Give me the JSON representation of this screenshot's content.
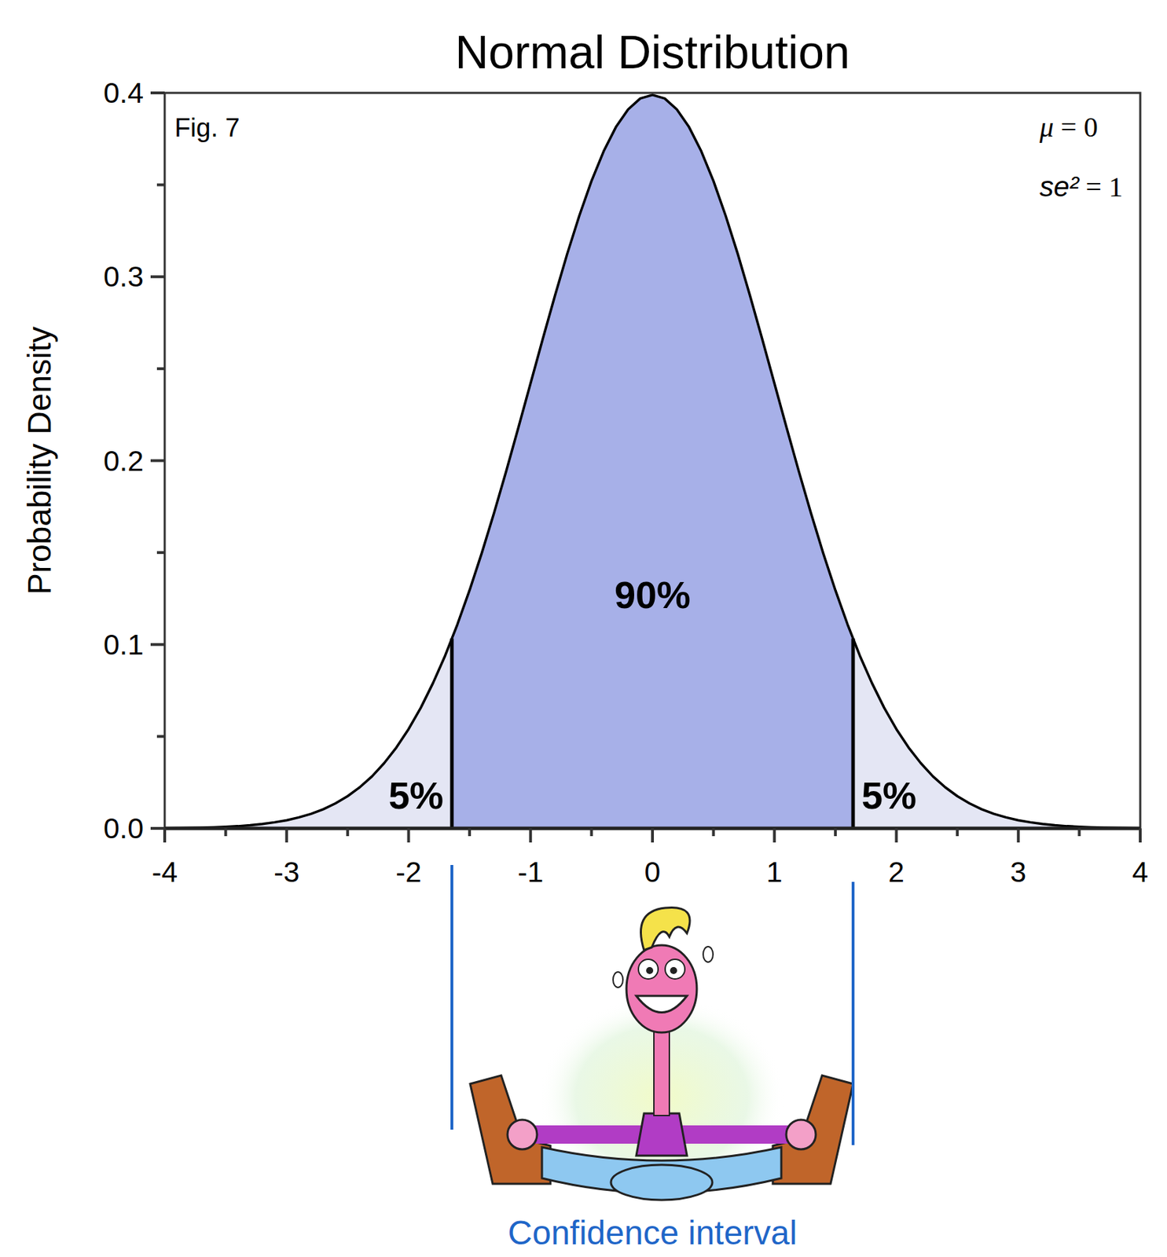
{
  "chart_data": {
    "type": "area",
    "title": "Normal Distribution",
    "y_label": "Probability Density",
    "figure_label": "Fig. 7",
    "parameters": [
      "μ = 0",
      "se² = 1"
    ],
    "color": "#000000",
    "x": [
      -4,
      -3.9,
      -3.8,
      -3.7,
      -3.6,
      -3.5,
      -3.4,
      -3.3,
      -3.2,
      -3.1,
      -3,
      -2.9,
      -2.8,
      -2.7,
      -2.6,
      -2.5,
      -2.4,
      -2.3,
      -2.2,
      -2.1,
      -2,
      -1.9,
      -1.8,
      -1.7,
      -1.6,
      -1.5,
      -1.4,
      -1.3,
      -1.2,
      -1.1,
      -1,
      -0.9,
      -0.8,
      -0.7,
      -0.6,
      -0.5,
      -0.4,
      -0.3,
      -0.2,
      -0.1,
      0,
      0.1,
      0.2,
      0.3,
      0.4,
      0.5,
      0.6,
      0.7,
      0.8,
      0.9,
      1,
      1.1,
      1.2,
      1.3,
      1.4,
      1.5,
      1.6,
      1.7,
      1.8,
      1.9,
      2,
      2.1,
      2.2,
      2.3,
      2.4,
      2.5,
      2.6,
      2.7,
      2.8,
      2.9,
      3,
      3.1,
      3.2,
      3.3,
      3.4,
      3.5,
      3.6,
      3.7,
      3.8,
      3.9,
      4
    ],
    "values": [
      0.0001,
      0.0002,
      0.0003,
      0.0004,
      0.0006,
      0.0009,
      0.0012,
      0.0017,
      0.0024,
      0.0033,
      0.0044,
      0.006,
      0.0079,
      0.0104,
      0.0136,
      0.0175,
      0.0224,
      0.0283,
      0.0355,
      0.044,
      0.054,
      0.0656,
      0.079,
      0.094,
      0.1109,
      0.1295,
      0.1497,
      0.1714,
      0.1942,
      0.2179,
      0.242,
      0.2661,
      0.2897,
      0.3123,
      0.3332,
      0.3521,
      0.3683,
      0.3814,
      0.391,
      0.397,
      0.3989,
      0.397,
      0.391,
      0.3814,
      0.3683,
      0.3521,
      0.3332,
      0.3123,
      0.2897,
      0.2661,
      0.242,
      0.2179,
      0.1942,
      0.1714,
      0.1497,
      0.1295,
      0.1109,
      0.094,
      0.079,
      0.0656,
      0.054,
      0.044,
      0.0355,
      0.0283,
      0.0224,
      0.0175,
      0.0136,
      0.0104,
      0.0079,
      0.006,
      0.0044,
      0.0033,
      0.0024,
      0.0017,
      0.0012,
      0.0009,
      0.0006,
      0.0004,
      0.0003,
      0.0002,
      0.0001
    ],
    "xlim": [
      -4,
      4
    ],
    "xticks": [
      -4,
      -3,
      -2,
      -1,
      0,
      1,
      2,
      3,
      4
    ],
    "minor_xticks": [
      -3.5,
      -2.5,
      -1.5,
      -0.5,
      0.5,
      1.5,
      2.5,
      3.5
    ],
    "ylim": [
      0,
      0.4
    ],
    "yticks": [
      {
        "value": 0,
        "label": "0.0"
      },
      0.1,
      0.2,
      0.3,
      0.4
    ],
    "minor_yticks": [
      0.05,
      0.15,
      0.25,
      0.35
    ],
    "regions": [
      {
        "from": -4,
        "to": -1.645,
        "value": 5,
        "label": "5%",
        "color": "#e4e6f4"
      },
      {
        "from": -1.645,
        "to": 1.645,
        "value": 90,
        "label": "90%",
        "color": "#a7b0e8"
      },
      {
        "from": 1.645,
        "to": 4,
        "value": 5,
        "label": "5%",
        "color": "#e4e6f4"
      }
    ],
    "interval": {
      "label": "Confidence interval",
      "bounds": [
        -1.645,
        1.645
      ],
      "color": "#1f66c8"
    }
  }
}
